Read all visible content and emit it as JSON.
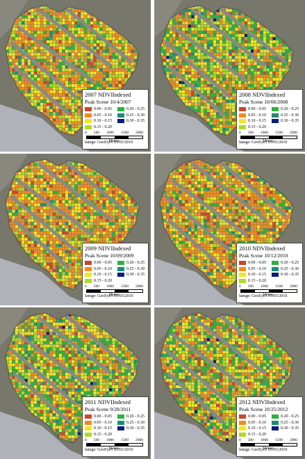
{
  "legend_classes": [
    {
      "label": "0.00 - 0.05",
      "color": "#c8482c"
    },
    {
      "label": "0.20 - 0.25",
      "color": "#2cb33c"
    },
    {
      "label": "0.05 - 0.10",
      "color": "#f08c1e"
    },
    {
      "label": "0.25 - 0.30",
      "color": "#1e8c78"
    },
    {
      "label": "0.10 - 0.15",
      "color": "#f5e61e"
    },
    {
      "label": "0.30 - 0.35",
      "color": "#0a1e78"
    },
    {
      "label": "0.15 - 0.20",
      "color": "#aadc28"
    }
  ],
  "scale": {
    "ticks": [
      "0",
      "500",
      "1000",
      "1500",
      "2000"
    ],
    "units": "Meters"
  },
  "image_credit": "Iamge: GeoEye1 05/03/2010",
  "panels": [
    {
      "title_main": "2007 NDVI",
      "title_sub": "Indexed",
      "peak_scene": "Peak Scene 10/4/2007",
      "dominant": "mixed"
    },
    {
      "title_main": "2008 NDVI",
      "title_sub": "Indexed",
      "peak_scene": "Peak Scene 10/06/2008",
      "dominant": "green"
    },
    {
      "title_main": "2009 NDVI",
      "title_sub": "Indexed",
      "peak_scene": "Peak Scene 10/09/2009",
      "dominant": "orange"
    },
    {
      "title_main": "2010 NDVI",
      "title_sub": "Indexed",
      "peak_scene": "Peak Scene 10/12/2010",
      "dominant": "orange"
    },
    {
      "title_main": "2011 NDVI",
      "title_sub": "Indexed",
      "peak_scene": "Peak Scene 9/28/2011",
      "dominant": "green"
    },
    {
      "title_main": "2012 NDVI",
      "title_sub": "Indexed",
      "peak_scene": "Peak Scene 10/25/2012",
      "dominant": "green"
    }
  ]
}
